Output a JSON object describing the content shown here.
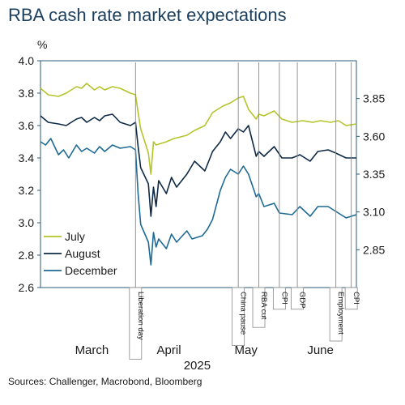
{
  "chart_data": {
    "type": "line",
    "title": "RBA cash rate market expectations",
    "ylabel_left": "%",
    "ylim_left": [
      2.6,
      4.0
    ],
    "yticks_left": [
      4.0,
      3.8,
      3.6,
      3.4,
      3.2,
      3.0,
      2.8,
      2.6
    ],
    "ytick_labels_left": [
      "4.0",
      "3.8",
      "3.6",
      "3.4",
      "3.2",
      "3.0",
      "2.8",
      "2.6"
    ],
    "ylim_right": [
      2.6,
      4.1
    ],
    "yticks_right": [
      3.85,
      3.6,
      3.35,
      3.1,
      2.85
    ],
    "ytick_labels_right": [
      "3.85",
      "3.60",
      "3.35",
      "3.10",
      "2.85"
    ],
    "x_month_labels": [
      "March",
      "April",
      "May",
      "June"
    ],
    "x_year_label": "2025",
    "xlim": [
      "2025-02-24",
      "2025-06-27"
    ],
    "legend_position": "bottom-left",
    "series": [
      {
        "name": "July",
        "color": "#b5c42a",
        "x": [
          "2025-02-24",
          "2025-02-27",
          "2025-03-03",
          "2025-03-06",
          "2025-03-10",
          "2025-03-12",
          "2025-03-14",
          "2025-03-17",
          "2025-03-19",
          "2025-03-21",
          "2025-03-24",
          "2025-03-27",
          "2025-03-31",
          "2025-04-02",
          "2025-04-03",
          "2025-04-04",
          "2025-04-07",
          "2025-04-08",
          "2025-04-09",
          "2025-04-10",
          "2025-04-14",
          "2025-04-17",
          "2025-04-22",
          "2025-04-25",
          "2025-04-29",
          "2025-05-02",
          "2025-05-06",
          "2025-05-09",
          "2025-05-12",
          "2025-05-14",
          "2025-05-16",
          "2025-05-19",
          "2025-05-20",
          "2025-05-22",
          "2025-05-26",
          "2025-05-29",
          "2025-06-02",
          "2025-06-06",
          "2025-06-10",
          "2025-06-13",
          "2025-06-17",
          "2025-06-20",
          "2025-06-23",
          "2025-06-27"
        ],
        "values": [
          3.83,
          3.79,
          3.78,
          3.8,
          3.84,
          3.83,
          3.86,
          3.82,
          3.84,
          3.82,
          3.84,
          3.83,
          3.8,
          3.79,
          3.68,
          3.58,
          3.43,
          3.3,
          3.5,
          3.48,
          3.5,
          3.52,
          3.54,
          3.57,
          3.6,
          3.68,
          3.72,
          3.74,
          3.77,
          3.78,
          3.7,
          3.64,
          3.67,
          3.66,
          3.69,
          3.64,
          3.62,
          3.63,
          3.62,
          3.63,
          3.62,
          3.63,
          3.6,
          3.61
        ]
      },
      {
        "name": "August",
        "color": "#0e2a47",
        "x": [
          "2025-02-24",
          "2025-02-27",
          "2025-03-03",
          "2025-03-06",
          "2025-03-10",
          "2025-03-12",
          "2025-03-14",
          "2025-03-17",
          "2025-03-19",
          "2025-03-21",
          "2025-03-24",
          "2025-03-27",
          "2025-03-31",
          "2025-04-02",
          "2025-04-03",
          "2025-04-04",
          "2025-04-07",
          "2025-04-08",
          "2025-04-09",
          "2025-04-10",
          "2025-04-11",
          "2025-04-14",
          "2025-04-16",
          "2025-04-18",
          "2025-04-22",
          "2025-04-25",
          "2025-04-29",
          "2025-05-01",
          "2025-05-02",
          "2025-05-05",
          "2025-05-07",
          "2025-05-09",
          "2025-05-12",
          "2025-05-14",
          "2025-05-16",
          "2025-05-19",
          "2025-05-20",
          "2025-05-22",
          "2025-05-26",
          "2025-05-29",
          "2025-06-02",
          "2025-06-05",
          "2025-06-09",
          "2025-06-12",
          "2025-06-16",
          "2025-06-19",
          "2025-06-23",
          "2025-06-27"
        ],
        "values": [
          3.66,
          3.62,
          3.61,
          3.6,
          3.64,
          3.65,
          3.62,
          3.65,
          3.63,
          3.66,
          3.67,
          3.62,
          3.6,
          3.62,
          3.47,
          3.34,
          3.24,
          3.04,
          3.22,
          3.1,
          3.26,
          3.18,
          3.28,
          3.22,
          3.3,
          3.38,
          3.32,
          3.4,
          3.44,
          3.5,
          3.56,
          3.52,
          3.58,
          3.56,
          3.6,
          3.41,
          3.44,
          3.41,
          3.47,
          3.4,
          3.4,
          3.42,
          3.38,
          3.44,
          3.45,
          3.43,
          3.4,
          3.4
        ]
      },
      {
        "name": "December",
        "color": "#1d6a94",
        "x": [
          "2025-02-24",
          "2025-02-26",
          "2025-02-28",
          "2025-03-03",
          "2025-03-05",
          "2025-03-07",
          "2025-03-10",
          "2025-03-12",
          "2025-03-14",
          "2025-03-17",
          "2025-03-19",
          "2025-03-21",
          "2025-03-24",
          "2025-03-27",
          "2025-03-31",
          "2025-04-02",
          "2025-04-03",
          "2025-04-04",
          "2025-04-07",
          "2025-04-08",
          "2025-04-09",
          "2025-04-10",
          "2025-04-11",
          "2025-04-14",
          "2025-04-16",
          "2025-04-18",
          "2025-04-22",
          "2025-04-24",
          "2025-04-28",
          "2025-04-30",
          "2025-05-02",
          "2025-05-05",
          "2025-05-07",
          "2025-05-09",
          "2025-05-12",
          "2025-05-14",
          "2025-05-16",
          "2025-05-19",
          "2025-05-20",
          "2025-05-22",
          "2025-05-26",
          "2025-05-28",
          "2025-06-02",
          "2025-06-05",
          "2025-06-09",
          "2025-06-12",
          "2025-06-16",
          "2025-06-19",
          "2025-06-23",
          "2025-06-27"
        ],
        "values": [
          3.5,
          3.48,
          3.52,
          3.42,
          3.45,
          3.4,
          3.48,
          3.44,
          3.46,
          3.43,
          3.47,
          3.44,
          3.48,
          3.46,
          3.47,
          3.45,
          3.18,
          2.99,
          2.88,
          2.74,
          2.94,
          2.85,
          2.9,
          2.84,
          2.93,
          2.88,
          2.95,
          2.9,
          2.92,
          2.96,
          3.02,
          3.2,
          3.28,
          3.33,
          3.3,
          3.35,
          3.3,
          3.16,
          3.18,
          3.1,
          3.12,
          3.06,
          3.05,
          3.1,
          3.04,
          3.1,
          3.1,
          3.07,
          3.03,
          3.05
        ]
      }
    ],
    "annotations": [
      {
        "label": "Liberation day",
        "date": "2025-04-02"
      },
      {
        "label": "China pause",
        "date": "2025-05-12"
      },
      {
        "label": "RBA cut",
        "date": "2025-05-20"
      },
      {
        "label": "CPI",
        "date": "2025-05-28"
      },
      {
        "label": "GDP",
        "date": "2025-06-04"
      },
      {
        "label": "Employment",
        "date": "2025-06-19"
      },
      {
        "label": "CPI",
        "date": "2025-06-25"
      }
    ]
  },
  "source": "Sources: Challenger, Macrobond, Bloomberg"
}
